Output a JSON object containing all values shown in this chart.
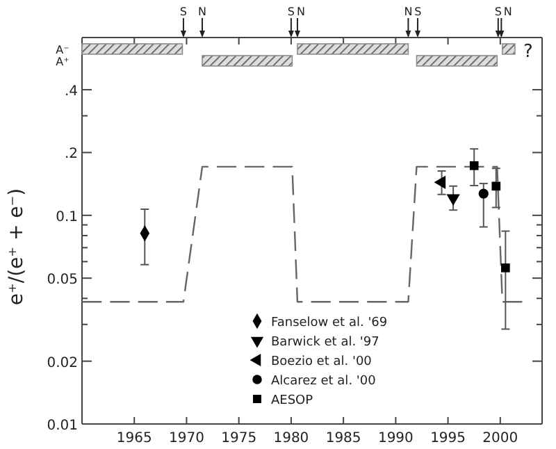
{
  "chart_data": [
    {
      "type": "bar",
      "orientation": "horizontal",
      "categories": [
        "A⁻",
        "A⁺"
      ],
      "xlim": [
        1960,
        2004
      ],
      "xticks": [
        {
          "value": 1965,
          "label": null
        },
        {
          "value": 1970,
          "label": null
        },
        {
          "value": 1975,
          "label": null
        },
        {
          "value": 1980,
          "label": null
        },
        {
          "value": 1985,
          "label": null
        },
        {
          "value": 1990,
          "label": null
        },
        {
          "value": 1995,
          "label": null
        },
        {
          "value": 2000,
          "label": null
        }
      ],
      "tick_labels": "y",
      "series": [
        {
          "color": "#8c8c8c",
          "base": [
            1960,
            null
          ],
          "values": [
            9.6,
            null
          ]
        },
        {
          "color": "#8c8c8c",
          "base": [
            null,
            1971.5
          ],
          "values": [
            null,
            8.6
          ]
        },
        {
          "color": "#8c8c8c",
          "base": [
            1980.6,
            null
          ],
          "values": [
            10.6,
            null
          ]
        },
        {
          "color": "#8c8c8c",
          "base": [
            null,
            1992.0
          ],
          "values": [
            null,
            7.7
          ]
        },
        {
          "color": "#8c8c8c",
          "base": [
            2000.2,
            null
          ],
          "values": [
            1.2,
            null
          ]
        }
      ],
      "ref_lines": [
        {
          "axis": "x",
          "value": 1969.7,
          "label": "S"
        },
        {
          "axis": "x",
          "value": 1971.5,
          "label": "N"
        },
        {
          "axis": "x",
          "value": 1980.0,
          "label": "S"
        },
        {
          "axis": "x",
          "value": 1980.6,
          "label": "N"
        },
        {
          "axis": "x",
          "value": 1991.2,
          "label": "N"
        },
        {
          "axis": "x",
          "value": 1992.1,
          "label": "S"
        },
        {
          "axis": "x",
          "value": 1999.8,
          "label": "S"
        },
        {
          "axis": "x",
          "value": 2000.1,
          "label": "N"
        }
      ],
      "annotations": [
        "?"
      ]
    },
    {
      "type": "scatter",
      "ylabel": "e⁺/(e⁺ + e⁻)",
      "log": "y",
      "xlim": [
        1960,
        2004
      ],
      "ylim": [
        0.01,
        0.5
      ],
      "xticks": [
        1965,
        1970,
        1975,
        1980,
        1985,
        1990,
        1995,
        2000
      ],
      "yticks": [
        {
          "value": 0.01,
          "label": "0.01"
        },
        {
          "value": 0.02,
          "label": "0.02"
        },
        {
          "value": 0.03,
          "label": null
        },
        {
          "value": 0.04,
          "label": null
        },
        {
          "value": 0.05,
          "label": "0.05"
        },
        {
          "value": 0.06,
          "label": null
        },
        {
          "value": 0.07,
          "label": null
        },
        {
          "value": 0.08,
          "label": null
        },
        {
          "value": 0.09,
          "label": null
        },
        {
          "value": 0.1,
          "label": "0.1"
        },
        {
          "value": 0.2,
          "label": ".2"
        },
        {
          "value": 0.3,
          "label": null
        },
        {
          "value": 0.4,
          "label": ".4"
        }
      ],
      "grid": false,
      "legend": "bottom",
      "series": [
        {
          "type": "line",
          "line_style": "dashed",
          "marker": "none",
          "color": "#666666",
          "x": [
            1960,
            1969.7,
            1971.5,
            1980.1,
            1980.6,
            1991.2,
            1992.0,
            1999.7,
            2000.2,
            2002.1
          ],
          "values": [
            0.0385,
            0.0385,
            0.171,
            0.171,
            0.0385,
            0.0385,
            0.171,
            0.171,
            0.0385,
            0.0385
          ]
        },
        {
          "name": "Fanselow et al. '69",
          "marker": "diamond",
          "color": "#000000",
          "x": [
            1966.0
          ],
          "values": [
            0.082
          ],
          "errors": [
            [
              0.058,
              0.107
            ]
          ]
        },
        {
          "name": "Barwick et al. '97",
          "marker": "triangle-down",
          "color": "#000000",
          "x": [
            1995.5
          ],
          "values": [
            0.121
          ],
          "errors": [
            [
              0.106,
              0.138
            ]
          ]
        },
        {
          "name": "Boezio et al. '00",
          "marker": "triangle-left",
          "color": "#000000",
          "x": [
            1994.4
          ],
          "values": [
            0.144
          ],
          "errors": [
            [
              0.126,
              0.163
            ]
          ]
        },
        {
          "name": "Alcarez et al. '00",
          "marker": "circle",
          "color": "#000000",
          "x": [
            1998.4
          ],
          "values": [
            0.127
          ],
          "errors": [
            [
              0.088,
              0.142
            ]
          ]
        },
        {
          "name": "AESOP",
          "marker": "square",
          "color": "#000000",
          "x": [
            1997.5,
            1999.6,
            2000.5
          ],
          "values": [
            0.173,
            0.138,
            0.056
          ],
          "errors": [
            [
              0.139,
              0.208
            ],
            [
              0.109,
              0.168
            ],
            [
              0.0285,
              0.084
            ]
          ]
        }
      ]
    }
  ]
}
